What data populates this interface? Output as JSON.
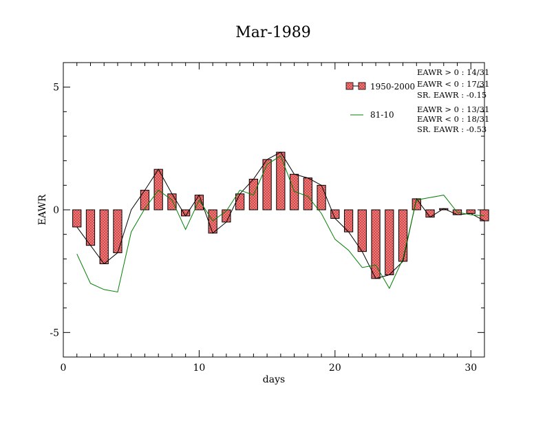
{
  "chart_data": {
    "type": "bar",
    "title": "Mar-1989",
    "xlabel": "days",
    "ylabel": "EAWR",
    "xlim": [
      0,
      31
    ],
    "ylim": [
      -6,
      6
    ],
    "x_ticks": [
      0,
      10,
      20,
      30
    ],
    "y_ticks": [
      5,
      0,
      -5
    ],
    "grid": false,
    "legend_position": "top-right",
    "x": [
      1,
      2,
      3,
      4,
      5,
      6,
      7,
      8,
      9,
      10,
      11,
      12,
      13,
      14,
      15,
      16,
      17,
      18,
      19,
      20,
      21,
      22,
      23,
      24,
      25,
      26,
      27,
      28,
      29,
      30,
      31
    ],
    "series": [
      {
        "name": "1950-2000",
        "type": "bar",
        "values": [
          -0.7,
          -1.45,
          -2.2,
          -1.75,
          0.0,
          0.8,
          1.65,
          0.65,
          -0.25,
          0.6,
          -0.95,
          -0.5,
          0.65,
          1.25,
          2.05,
          2.35,
          1.45,
          1.3,
          1.0,
          -0.35,
          -0.9,
          -1.7,
          -2.8,
          -2.65,
          -2.1,
          0.45,
          -0.3,
          0.05,
          -0.2,
          -0.15,
          -0.45
        ],
        "colors": {
          "fill": "#f08080",
          "stroke": "#000000"
        }
      },
      {
        "name": "81-10",
        "type": "line",
        "values": [
          -1.8,
          -3.0,
          -3.25,
          -3.35,
          -0.9,
          0.05,
          0.8,
          0.4,
          -0.8,
          0.4,
          -0.45,
          -0.05,
          0.8,
          0.6,
          1.85,
          2.2,
          0.75,
          0.55,
          -0.15,
          -1.2,
          -1.65,
          -2.35,
          -2.25,
          -3.2,
          -2.0,
          0.4,
          0.5,
          0.6,
          -0.1,
          -0.2,
          -0.25
        ],
        "colors": {
          "stroke": "#008000"
        }
      }
    ],
    "annotations": [
      {
        "group": "1950-2000",
        "lines": [
          "EAWR > 0 : 14/31",
          "EAWR < 0 : 17/31",
          "SR. EAWR : -0.15"
        ]
      },
      {
        "group": "81-10",
        "lines": [
          "EAWR > 0 : 13/31",
          "EAWR < 0 : 18/31",
          "SR. EAWR : -0.53"
        ]
      }
    ]
  }
}
